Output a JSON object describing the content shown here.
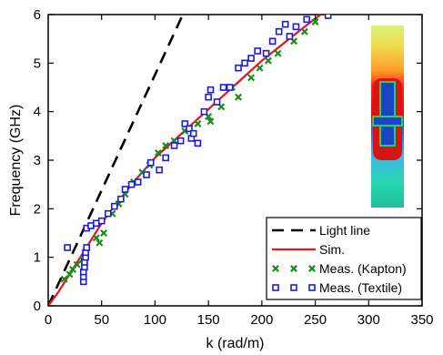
{
  "chart_data": {
    "type": "line",
    "xlabel": "k (rad/m)",
    "ylabel": "Frequency (GHz)",
    "xlim": [
      0,
      350
    ],
    "ylim": [
      0,
      6
    ],
    "xticks": [
      0,
      50,
      100,
      150,
      200,
      250,
      300,
      350
    ],
    "yticks": [
      0,
      1,
      2,
      3,
      4,
      5,
      6
    ],
    "grid": false,
    "legend_position": "bottom-right",
    "inset": "field-distribution colormap (blue, green, red)",
    "series": [
      {
        "name": "Light line",
        "style": "dashed",
        "color": "#000000",
        "x": [
          0,
          126
        ],
        "y": [
          0,
          6
        ]
      },
      {
        "name": "Sim.",
        "style": "solid",
        "color": "#e8141c",
        "x": [
          0,
          10,
          20,
          30,
          40,
          50,
          60,
          80,
          100,
          120,
          140,
          160,
          180,
          200,
          220,
          240,
          255
        ],
        "y": [
          0,
          0.3,
          0.65,
          1.0,
          1.35,
          1.7,
          2.0,
          2.55,
          3.05,
          3.45,
          3.85,
          4.25,
          4.65,
          5.05,
          5.4,
          5.75,
          6.0
        ]
      },
      {
        "name": "Meas. (Kapton)",
        "style": "x-marker",
        "color": "#1a8c1a",
        "x": [
          15,
          20,
          23,
          27,
          32,
          45,
          48,
          52,
          60,
          66,
          72,
          80,
          88,
          95,
          103,
          110,
          118,
          128,
          140,
          150,
          152,
          162,
          172,
          178,
          190,
          198,
          206,
          215,
          230,
          240,
          250
        ],
        "y": [
          0.55,
          0.65,
          0.75,
          0.85,
          0.95,
          1.4,
          1.3,
          1.5,
          1.9,
          2.1,
          2.3,
          2.55,
          2.75,
          2.9,
          3.15,
          3.3,
          3.4,
          3.6,
          3.75,
          3.9,
          3.8,
          4.1,
          4.5,
          4.3,
          4.7,
          4.9,
          5.05,
          5.2,
          5.45,
          5.65,
          5.85
        ]
      },
      {
        "name": "Meas. (Textile)",
        "style": "square-marker",
        "color": "#1a1ae6",
        "x": [
          18,
          33,
          33,
          33,
          34,
          34,
          35,
          35,
          36,
          36,
          40,
          45,
          50,
          56,
          62,
          68,
          72,
          78,
          84,
          92,
          96,
          104,
          110,
          118,
          124,
          128,
          132,
          134,
          136,
          140,
          146,
          150,
          152,
          158,
          164,
          170,
          178,
          184,
          190,
          196,
          204,
          210,
          216,
          222,
          226,
          232,
          242,
          262
        ],
        "y": [
          1.2,
          0.5,
          0.6,
          0.7,
          0.8,
          0.9,
          1.0,
          1.1,
          1.2,
          1.6,
          1.65,
          1.7,
          1.75,
          1.9,
          2.05,
          2.2,
          2.4,
          2.5,
          2.55,
          2.7,
          2.95,
          2.8,
          3.05,
          3.3,
          3.4,
          3.75,
          3.65,
          3.45,
          3.55,
          3.35,
          4.0,
          4.3,
          4.45,
          4.2,
          4.5,
          4.5,
          4.9,
          5.0,
          5.1,
          5.25,
          5.2,
          5.45,
          5.65,
          5.8,
          5.55,
          5.75,
          5.9,
          5.98
        ]
      }
    ]
  }
}
